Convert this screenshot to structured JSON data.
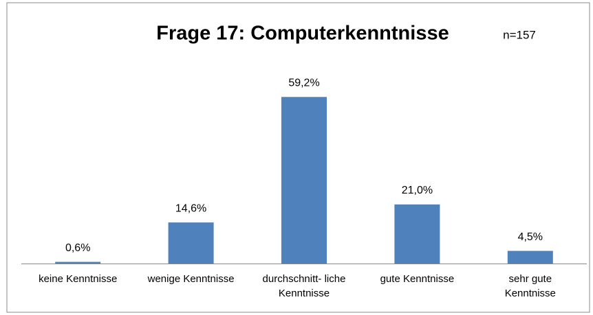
{
  "chart_data": {
    "type": "bar",
    "title": "Frage 17: Computerkenntnisse",
    "annotation": "n=157",
    "categories": [
      "keine Kenntnisse",
      "wenige Kenntnisse",
      "durchschnitt- liche Kenntnisse",
      "gute Kenntnisse",
      "sehr gute Kenntnisse"
    ],
    "values": [
      0.6,
      14.6,
      59.2,
      21.0,
      4.5
    ],
    "value_labels": [
      "0,6%",
      "14,6%",
      "59,2%",
      "21,0%",
      "4,5%"
    ],
    "color": "#4f81bd"
  }
}
